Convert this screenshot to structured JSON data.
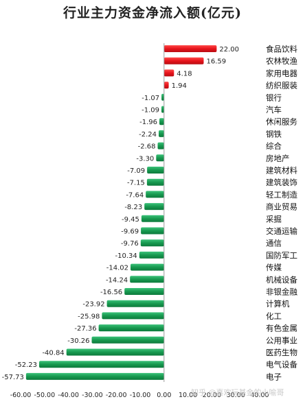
{
  "chart_data": {
    "type": "bar",
    "orientation": "horizontal",
    "title": "行业主力资金净流入额(亿元)",
    "categories": [
      "食品饮料",
      "农林牧渔",
      "家用电器",
      "纺织服装",
      "银行",
      "汽车",
      "休闲服务",
      "钢铁",
      "综合",
      "房地产",
      "建筑材料",
      "建筑装饰",
      "轻工制造",
      "商业贸易",
      "采掘",
      "交通运输",
      "通信",
      "国防军工",
      "传媒",
      "机械设备",
      "非银金融",
      "计算机",
      "化工",
      "有色金属",
      "公用事业",
      "医药生物",
      "电气设备",
      "电子"
    ],
    "values": [
      22.0,
      16.59,
      4.18,
      1.94,
      -1.07,
      -1.09,
      -1.96,
      -2.24,
      -2.68,
      -3.3,
      -7.09,
      -7.15,
      -7.64,
      -8.23,
      -9.45,
      -9.69,
      -9.76,
      -10.34,
      -14.02,
      -14.24,
      -16.56,
      -23.92,
      -25.98,
      -27.36,
      -30.26,
      -40.84,
      -52.23,
      -57.73
    ],
    "value_labels": [
      "22.00",
      "16.59",
      "4.18",
      "1.94",
      "-1.07",
      "-1.09",
      "-1.96",
      "-2.24",
      "-2.68",
      "-3.30",
      "-7.09",
      "-7.15",
      "-7.64",
      "-8.23",
      "-9.45",
      "-9.69",
      "-9.76",
      "-10.34",
      "-14.02",
      "-14.24",
      "-16.56",
      "-23.92",
      "-25.98",
      "-27.36",
      "-30.26",
      "-40.84",
      "-52.23",
      "-57.73"
    ],
    "xlim": [
      -60,
      40
    ],
    "xticks": [
      -60,
      -50,
      -40,
      -30,
      -20,
      -10,
      0,
      10,
      20,
      30,
      40
    ],
    "xtick_labels": [
      "-60.00",
      "-50.00",
      "-40.00",
      "-30.00",
      "-20.00",
      "-10.00",
      "0.00",
      "10.00",
      "20.00",
      "30.00",
      "40.00"
    ],
    "grid": false,
    "colors": {
      "positive": "#e8141c",
      "negative": "#1a9e54"
    }
  },
  "watermark": "知乎 @喜欢玩基金的小喻哥"
}
